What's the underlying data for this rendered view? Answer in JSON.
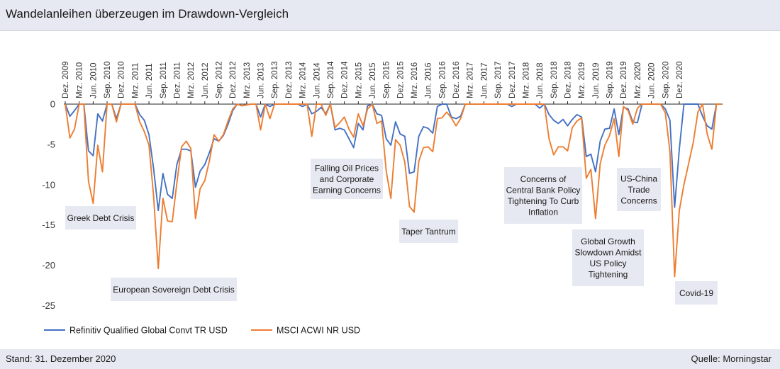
{
  "header": {
    "title": "Wandelanleihen überzeugen im Drawdown-Vergleich"
  },
  "footer": {
    "stand": "Stand: 31. Dezember 2020",
    "quelle": "Quelle: Morningstar"
  },
  "colors": {
    "series1": "#4472c4",
    "series2": "#ed7d31",
    "background_band": "#e7e9f2",
    "annotation_box": "#e7e9f2"
  },
  "chart_data": {
    "type": "line",
    "title": "",
    "xlabel": "",
    "ylabel": "",
    "ylim": [
      -25,
      0
    ],
    "yticks": [
      0,
      -5,
      -10,
      -15,
      -20,
      -25
    ],
    "x_axis_position": "top",
    "x_tick_labels": [
      "Dez. 2009",
      "Mrz. 2010",
      "Jun. 2010",
      "Sep. 2010",
      "Dez. 2010",
      "Mrz. 2011",
      "Jun. 2011",
      "Sep. 2011",
      "Dez. 2011",
      "Mrz. 2012",
      "Jun. 2012",
      "Sep. 2012",
      "Dez. 2012",
      "Mrz. 2013",
      "Jun. 2013",
      "Sep. 2013",
      "Dez. 2013",
      "Mrz. 2014",
      "Jun. 2014",
      "Sep. 2014",
      "Dez. 2014",
      "Mrz. 2015",
      "Jun. 2015",
      "Sep. 2015",
      "Dez. 2015",
      "Mrz. 2016",
      "Jun. 2016",
      "Sep. 2016",
      "Dez. 2016",
      "Mrz. 2017",
      "Jun. 2017",
      "Sep. 2017",
      "Dez. 2017",
      "Mrz. 2018",
      "Jun. 2018",
      "Sep. 2018",
      "Dez. 2018",
      "Mrz. 2019",
      "Jun. 2019",
      "Sep. 2019",
      "Dez. 2019",
      "Mrz. 2020",
      "Jun. 2020",
      "Sep. 2020",
      "Dez. 2020"
    ],
    "legend_position": "bottom-left",
    "series": [
      {
        "name": "Refinitiv Qualified Global Convt TR USD",
        "color": "#4472c4",
        "values": [
          0,
          -1.5,
          -0.8,
          0,
          0,
          -5.8,
          -6.4,
          -1.2,
          -2.1,
          0,
          0,
          -1.8,
          0,
          0,
          0,
          0,
          -1.3,
          -2.0,
          -3.8,
          -8.0,
          -13.2,
          -8.6,
          -11.2,
          -11.7,
          -7.5,
          -5.6,
          -5.6,
          -5.8,
          -10.3,
          -8.3,
          -7.5,
          -6.0,
          -4.3,
          -4.6,
          -3.9,
          -2.5,
          -0.8,
          0,
          -0.2,
          -0.1,
          0,
          0,
          -1.6,
          0,
          -0.3,
          0,
          0,
          0,
          0,
          0,
          0,
          -0.3,
          0,
          -1.2,
          -0.9,
          -0.4,
          -1.2,
          0,
          -3.2,
          -3.0,
          -3.2,
          -4.3,
          -5.4,
          -2.4,
          -3.2,
          -0.2,
          0,
          -1.2,
          -1.4,
          -4.3,
          -5.1,
          -2.2,
          -3.7,
          -4.0,
          -8.6,
          -8.4,
          -4.0,
          -2.8,
          -3.0,
          -3.6,
          -0.3,
          0,
          0,
          -1.6,
          -1.8,
          -1.5,
          0,
          0,
          0,
          0,
          0,
          0,
          0,
          0,
          0,
          0,
          -0.3,
          0,
          0,
          0,
          0,
          0,
          -0.5,
          0,
          -1.3,
          -2.0,
          -2.4,
          -1.9,
          -2.7,
          -1.9,
          -1.3,
          -1.6,
          -6.5,
          -6.2,
          -8.4,
          -4.6,
          -3.1,
          -3.0,
          -0.6,
          -3.8,
          -0.4,
          -0.6,
          -2.2,
          -2.3,
          0,
          0,
          0,
          0,
          0,
          -0.6,
          -2.0,
          -12.8,
          -5.6,
          0,
          0,
          0,
          0,
          -1.5,
          -2.7,
          -3.1,
          0,
          0
        ]
      },
      {
        "name": "MSCI ACWI NR USD",
        "color": "#ed7d31",
        "values": [
          0,
          -4.2,
          -3.1,
          0,
          0,
          -9.6,
          -12.3,
          -5.1,
          -8.4,
          0,
          0,
          -2.2,
          0,
          0,
          0,
          0,
          -2.2,
          -3.4,
          -5.1,
          -11.4,
          -20.4,
          -11.7,
          -14.5,
          -14.6,
          -9.8,
          -5.3,
          -4.6,
          -5.5,
          -14.2,
          -10.5,
          -9.5,
          -7.0,
          -3.8,
          -4.6,
          -3.8,
          -2.1,
          -0.6,
          0,
          -0.2,
          -0.1,
          0,
          0,
          -3.2,
          0,
          -1.8,
          0,
          0,
          0,
          0,
          0,
          0,
          0,
          0,
          -4.0,
          0,
          0,
          -1.4,
          0,
          -2.9,
          -2.3,
          -1.6,
          -3.1,
          -4.1,
          -1.2,
          -2.7,
          -0.6,
          0,
          -2.4,
          -2.1,
          -8.3,
          -11.7,
          -4.4,
          -5.1,
          -7.2,
          -12.7,
          -13.4,
          -7.1,
          -5.4,
          -5.3,
          -5.9,
          -1.8,
          -1.7,
          -1.0,
          -1.7,
          -2.7,
          -1.8,
          0,
          0,
          0,
          0,
          0,
          0,
          0,
          0,
          0,
          0,
          0,
          0,
          0,
          0,
          0,
          0,
          0,
          0,
          -4.3,
          -6.3,
          -5.3,
          -5.3,
          -5.8,
          -2.9,
          -2.1,
          -1.7,
          -9.2,
          -8.1,
          -14.2,
          -7.4,
          -5.1,
          -3.9,
          -1.8,
          -6.5,
          -0.3,
          -0.8,
          -2.5,
          -0.5,
          0,
          0,
          0,
          0,
          0,
          -1.1,
          -5.9,
          -21.4,
          -13.2,
          -10.0,
          -7.4,
          -4.8,
          -1.0,
          0,
          -3.7,
          -5.6,
          0,
          0
        ]
      }
    ],
    "annotations": [
      {
        "lines": [
          "Greek Debt Crisis"
        ]
      },
      {
        "lines": [
          "European Sovereign Debt Crisis"
        ]
      },
      {
        "lines": [
          "Falling Oil Prices",
          "and Corporate",
          "Earning Concerns"
        ]
      },
      {
        "lines": [
          "Taper Tantrum"
        ]
      },
      {
        "lines": [
          "Concerns of",
          "Central Bank Policy",
          "Tightening To Curb",
          "Inflation"
        ]
      },
      {
        "lines": [
          "Global Growth",
          "Slowdown Amidst",
          "US Policy",
          "Tightening"
        ]
      },
      {
        "lines": [
          "US-China",
          "Trade",
          "Concerns"
        ]
      },
      {
        "lines": [
          "Covid-19"
        ]
      }
    ]
  }
}
